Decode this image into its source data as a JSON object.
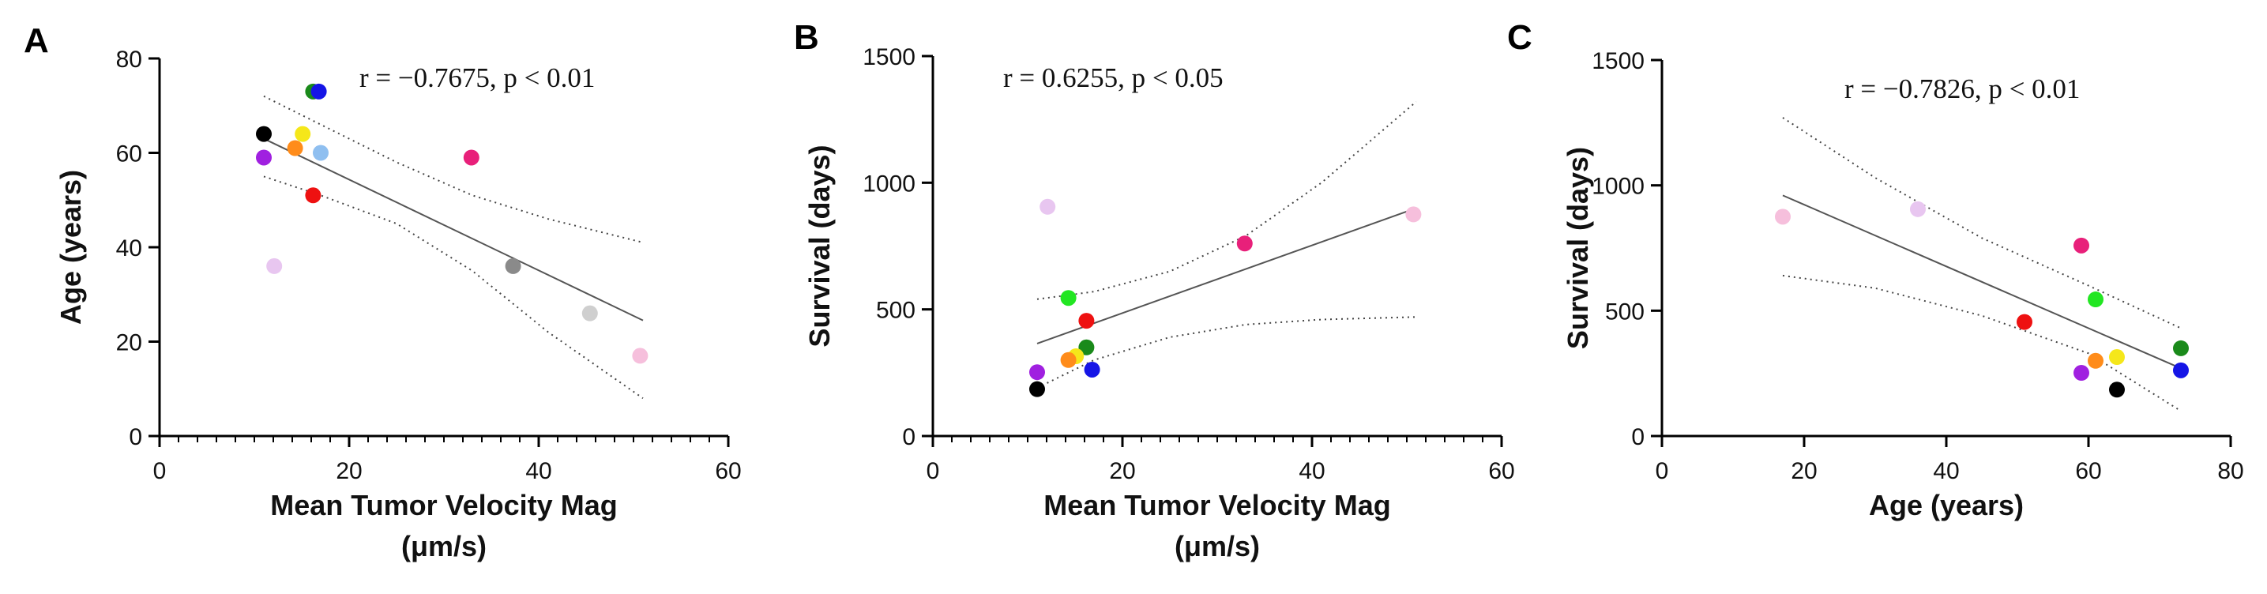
{
  "chart_data": [
    {
      "type": "scatter",
      "panel": "A",
      "xlabel": [
        "Mean Tumor Velocity Mag",
        "(μm/s)"
      ],
      "ylabel": "Age (years)",
      "xlim": [
        0,
        60
      ],
      "ylim": [
        0,
        80
      ],
      "xticks": [
        0,
        20,
        40,
        60
      ],
      "yticks": [
        0,
        20,
        40,
        60,
        80
      ],
      "xminor": 2,
      "yminor": null,
      "annotation": "r = −0.7675, p < 0.01",
      "points": [
        {
          "x": 16.2,
          "y": 73,
          "color": "#1a8a1a"
        },
        {
          "x": 16.8,
          "y": 73,
          "color": "#1515e6"
        },
        {
          "x": 11.0,
          "y": 64,
          "color": "#000000"
        },
        {
          "x": 15.1,
          "y": 64,
          "color": "#f5e71a"
        },
        {
          "x": 14.3,
          "y": 61,
          "color": "#ff8c1a"
        },
        {
          "x": 17.0,
          "y": 60,
          "color": "#8fbff0"
        },
        {
          "x": 11.0,
          "y": 59,
          "color": "#a020e0"
        },
        {
          "x": 32.9,
          "y": 59,
          "color": "#e8207a"
        },
        {
          "x": 16.2,
          "y": 51,
          "color": "#ee1111"
        },
        {
          "x": 12.1,
          "y": 36,
          "color": "#e8c6f0"
        },
        {
          "x": 37.3,
          "y": 36,
          "color": "#8a8a8a"
        },
        {
          "x": 45.4,
          "y": 26,
          "color": "#cfcfcf"
        },
        {
          "x": 50.7,
          "y": 17,
          "color": "#f6bfdc"
        }
      ],
      "fit": {
        "x": [
          11,
          51
        ],
        "y": [
          63,
          24.5
        ]
      },
      "ci_upper": {
        "x": [
          11,
          17,
          25,
          33,
          41,
          51
        ],
        "y": [
          72,
          66,
          58,
          51,
          46,
          41
        ]
      },
      "ci_lower": {
        "x": [
          11,
          17,
          25,
          33,
          41,
          51
        ],
        "y": [
          55,
          51,
          45,
          35,
          22,
          8
        ]
      }
    },
    {
      "type": "scatter",
      "panel": "B",
      "xlabel": [
        "Mean Tumor Velocity Mag",
        "(μm/s)"
      ],
      "ylabel": "Survival (days)",
      "xlim": [
        0,
        60
      ],
      "ylim": [
        0,
        1500
      ],
      "xticks": [
        0,
        20,
        40,
        60
      ],
      "yticks": [
        0,
        500,
        1000,
        1500
      ],
      "xminor": 2,
      "yminor": null,
      "annotation": "r = 0.6255, p < 0.05",
      "points": [
        {
          "x": 12.1,
          "y": 905,
          "color": "#e8c6f0"
        },
        {
          "x": 50.7,
          "y": 875,
          "color": "#f6bfdc"
        },
        {
          "x": 32.9,
          "y": 760,
          "color": "#e8207a"
        },
        {
          "x": 14.3,
          "y": 545,
          "color": "#22e622"
        },
        {
          "x": 16.2,
          "y": 455,
          "color": "#ee1111"
        },
        {
          "x": 16.2,
          "y": 350,
          "color": "#1a8a1a"
        },
        {
          "x": 15.1,
          "y": 315,
          "color": "#f5e71a"
        },
        {
          "x": 14.3,
          "y": 300,
          "color": "#ff8c1a"
        },
        {
          "x": 16.8,
          "y": 262,
          "color": "#1515e6"
        },
        {
          "x": 11.0,
          "y": 252,
          "color": "#a020e0"
        },
        {
          "x": 11.0,
          "y": 185,
          "color": "#000000"
        }
      ],
      "fit": {
        "x": [
          11,
          51
        ],
        "y": [
          365,
          900
        ]
      },
      "ci_upper": {
        "x": [
          11,
          17,
          25,
          33,
          41,
          51
        ],
        "y": [
          540,
          570,
          650,
          790,
          1000,
          1320
        ]
      },
      "ci_lower": {
        "x": [
          11,
          17,
          25,
          33,
          41,
          51
        ],
        "y": [
          190,
          300,
          390,
          440,
          460,
          470
        ]
      }
    },
    {
      "type": "scatter",
      "panel": "C",
      "xlabel": [
        "Age (years)"
      ],
      "ylabel": "Survival (days)",
      "xlim": [
        0,
        80
      ],
      "ylim": [
        0,
        1500
      ],
      "xticks": [
        0,
        20,
        40,
        60,
        80
      ],
      "yticks": [
        0,
        500,
        1000,
        1500
      ],
      "xminor": null,
      "yminor": null,
      "annotation": "r = −0.7826, p < 0.01",
      "points": [
        {
          "x": 17,
          "y": 875,
          "color": "#f6bfdc"
        },
        {
          "x": 36,
          "y": 905,
          "color": "#e8c6f0"
        },
        {
          "x": 59,
          "y": 760,
          "color": "#e8207a"
        },
        {
          "x": 61,
          "y": 545,
          "color": "#22e622"
        },
        {
          "x": 51,
          "y": 455,
          "color": "#ee1111"
        },
        {
          "x": 73,
          "y": 350,
          "color": "#1a8a1a"
        },
        {
          "x": 64,
          "y": 315,
          "color": "#f5e71a"
        },
        {
          "x": 61,
          "y": 300,
          "color": "#ff8c1a"
        },
        {
          "x": 73,
          "y": 262,
          "color": "#1515e6"
        },
        {
          "x": 59,
          "y": 252,
          "color": "#a020e0"
        },
        {
          "x": 64,
          "y": 185,
          "color": "#000000"
        }
      ],
      "fit": {
        "x": [
          17,
          73
        ],
        "y": [
          960,
          270
        ]
      },
      "ci_upper": {
        "x": [
          17,
          30,
          45,
          60,
          73
        ],
        "y": [
          1270,
          1030,
          790,
          600,
          430
        ]
      },
      "ci_lower": {
        "x": [
          17,
          30,
          45,
          60,
          73
        ],
        "y": [
          640,
          590,
          480,
          330,
          100
        ]
      }
    }
  ]
}
